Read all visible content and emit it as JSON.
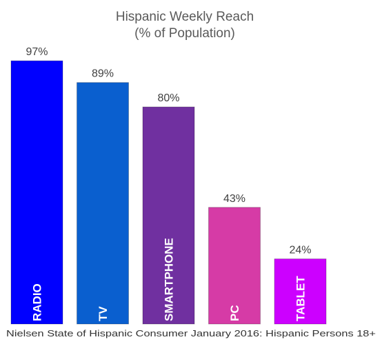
{
  "chart_data": {
    "type": "bar",
    "title_lines": [
      "Hispanic Weekly Reach",
      "(% of Population)"
    ],
    "categories": [
      "RADIO",
      "TV",
      "SMARTPHONE",
      "PC",
      "TABLET"
    ],
    "values": [
      97,
      89,
      80,
      43,
      24
    ],
    "value_labels": [
      "97%",
      "89%",
      "80%",
      "43%",
      "24%"
    ],
    "colors": [
      "#0000ff",
      "#0a5fcf",
      "#7030a0",
      "#d63ba6",
      "#cc00ff"
    ],
    "ylim": [
      0,
      100
    ],
    "grid": false,
    "legend": "none",
    "source": "Nielsen State of Hispanic Consumer January 2016: Hispanic Persons 18+"
  }
}
